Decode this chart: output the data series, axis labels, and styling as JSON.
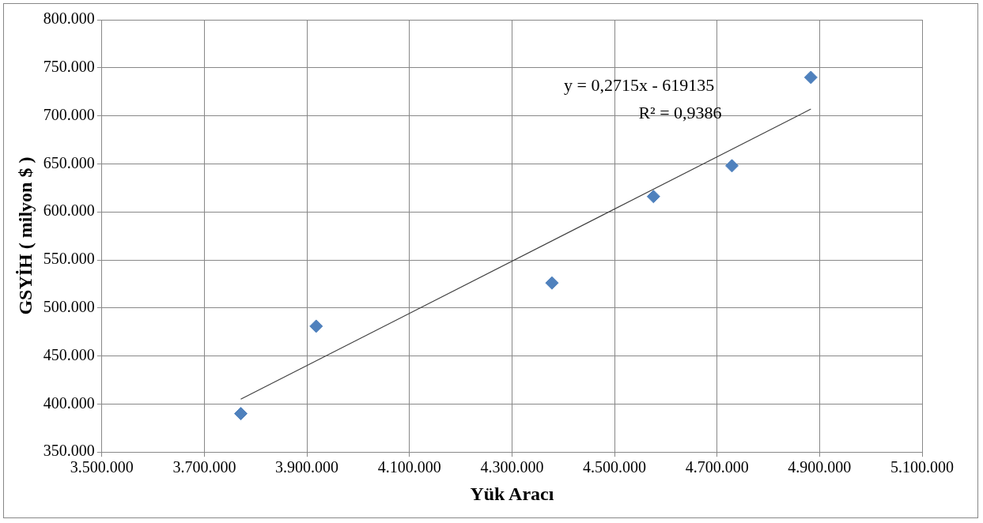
{
  "chart_data": {
    "type": "scatter",
    "xlabel": "Yük Aracı",
    "ylabel": "GSYİH ( milyon $ )",
    "xlim": [
      3500000,
      5100000
    ],
    "xticks": [
      {
        "value": 3500000,
        "label": "3.500.000"
      },
      {
        "value": 3700000,
        "label": "3.700.000"
      },
      {
        "value": 3900000,
        "label": "3.900.000"
      },
      {
        "value": 4100000,
        "label": "4.100.000"
      },
      {
        "value": 4300000,
        "label": "4.300.000"
      },
      {
        "value": 4500000,
        "label": "4.500.000"
      },
      {
        "value": 4700000,
        "label": "4.700.000"
      },
      {
        "value": 4900000,
        "label": "4.900.000"
      },
      {
        "value": 5100000,
        "label": "5.100.000"
      }
    ],
    "ylim": [
      350000,
      800000
    ],
    "yticks": [
      {
        "value": 350000,
        "label": "350.000"
      },
      {
        "value": 400000,
        "label": "400.000"
      },
      {
        "value": 450000,
        "label": "450.000"
      },
      {
        "value": 500000,
        "label": "500.000"
      },
      {
        "value": 550000,
        "label": "550.000"
      },
      {
        "value": 600000,
        "label": "600.000"
      },
      {
        "value": 650000,
        "label": "650.000"
      },
      {
        "value": 700000,
        "label": "700.000"
      },
      {
        "value": 750000,
        "label": "750.000"
      },
      {
        "value": 800000,
        "label": "800.000"
      }
    ],
    "grid": true,
    "series": [
      {
        "marker": "diamond",
        "color": "#4f81bd",
        "x": [
          3771000,
          3918000,
          4378000,
          4576000,
          4729000,
          4883000
        ],
        "values": [
          390000,
          481000,
          526000,
          616000,
          648000,
          740000
        ]
      },
      {
        "type": "line",
        "marker": "none",
        "color": "#404040",
        "x": [
          3771000,
          4883000
        ],
        "values": [
          405000,
          707000
        ]
      }
    ],
    "annotations": [
      "y = 0,2715x - 619135",
      "R² = 0,9386"
    ]
  }
}
